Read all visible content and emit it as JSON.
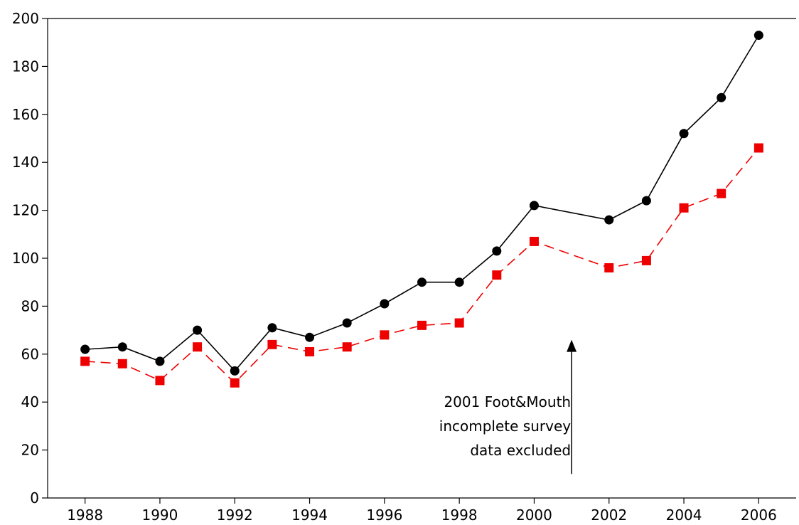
{
  "chart_data": {
    "type": "line",
    "title": "",
    "xlabel": "",
    "ylabel": "",
    "xlim": [
      1987,
      2007
    ],
    "ylim": [
      0,
      200
    ],
    "x_ticks": [
      1988,
      1990,
      1992,
      1994,
      1996,
      1998,
      2000,
      2002,
      2004,
      2006
    ],
    "y_ticks": [
      0,
      20,
      40,
      60,
      80,
      100,
      120,
      140,
      160,
      180,
      200
    ],
    "grid": false,
    "legend": "none",
    "series": [
      {
        "color": "#000000",
        "line_style": "solid",
        "marker": "circle",
        "x": [
          1988,
          1989,
          1990,
          1991,
          1992,
          1993,
          1994,
          1995,
          1996,
          1997,
          1998,
          1999,
          2000,
          2002,
          2003,
          2004,
          2005,
          2006
        ],
        "y": [
          62,
          63,
          57,
          70,
          53,
          71,
          67,
          73,
          81,
          90,
          90,
          103,
          122,
          116,
          124,
          152,
          167,
          193
        ]
      },
      {
        "color": "#ee0000",
        "line_style": "dashed",
        "marker": "square",
        "x": [
          1988,
          1989,
          1990,
          1991,
          1992,
          1993,
          1994,
          1995,
          1996,
          1997,
          1998,
          1999,
          2000,
          2002,
          2003,
          2004,
          2005,
          2006
        ],
        "y": [
          57,
          56,
          49,
          63,
          48,
          64,
          61,
          63,
          68,
          72,
          73,
          93,
          107,
          96,
          99,
          121,
          127,
          146
        ]
      }
    ],
    "annotations": [
      {
        "lines": [
          "2001 Foot&Mouth",
          "incomplete survey",
          "data excluded"
        ],
        "arrow_x": 2001,
        "arrow_y_from": 10,
        "arrow_y_to": 66
      }
    ]
  }
}
